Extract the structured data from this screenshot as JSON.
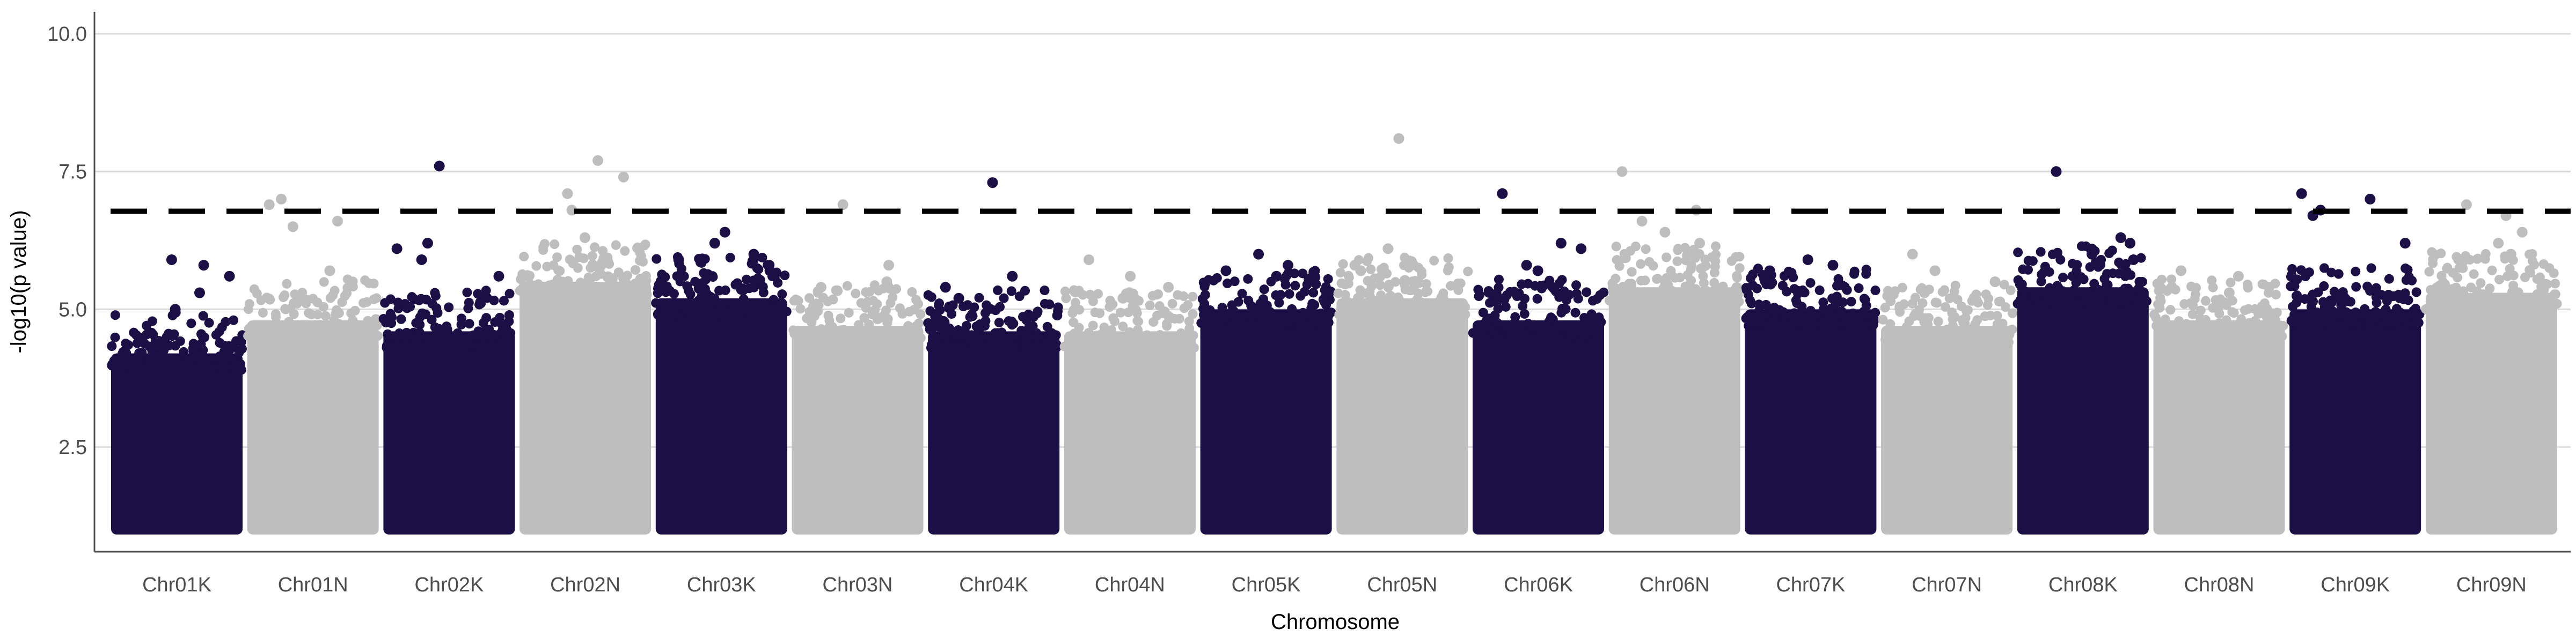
{
  "chart_data": {
    "type": "scatter",
    "subtype": "manhattan",
    "title": "",
    "xlabel": "Chromosome",
    "ylabel": "-log10(p value)",
    "ylim": [
      0.6,
      10.4
    ],
    "yticks": [
      2.5,
      5.0,
      7.5,
      10.0
    ],
    "ytick_labels": [
      "2.5",
      "5.0",
      "7.5",
      "10.0"
    ],
    "grid": "horizontal major",
    "legend": "none",
    "significance_threshold": 6.78,
    "threshold_style": "dashed",
    "point_floor": 1.0,
    "colors": {
      "odd": "#1b0f45",
      "even": "#bebebe",
      "threshold": "#000000",
      "grid": "#d9d9d9"
    },
    "chromosomes": [
      {
        "name": "Chr01K",
        "color": "#1b0f45",
        "dense_top": 4.2,
        "top_hits": [
          5.0,
          5.3,
          5.6,
          5.9,
          5.8
        ]
      },
      {
        "name": "Chr01N",
        "color": "#bebebe",
        "dense_top": 4.8,
        "top_hits": [
          6.5,
          6.6,
          6.9,
          7.0,
          5.7
        ]
      },
      {
        "name": "Chr02K",
        "color": "#1b0f45",
        "dense_top": 4.6,
        "top_hits": [
          6.2,
          7.6,
          6.1,
          5.9,
          5.6
        ]
      },
      {
        "name": "Chr02N",
        "color": "#bebebe",
        "dense_top": 5.5,
        "top_hits": [
          6.8,
          7.7,
          7.4,
          7.1,
          6.3
        ]
      },
      {
        "name": "Chr03K",
        "color": "#1b0f45",
        "dense_top": 5.2,
        "top_hits": [
          6.2,
          6.4,
          6.0,
          5.9,
          5.7
        ]
      },
      {
        "name": "Chr03N",
        "color": "#bebebe",
        "dense_top": 4.7,
        "top_hits": [
          6.9,
          5.8,
          5.5,
          5.4
        ]
      },
      {
        "name": "Chr04K",
        "color": "#1b0f45",
        "dense_top": 4.6,
        "top_hits": [
          7.3,
          5.6,
          5.4,
          5.2
        ]
      },
      {
        "name": "Chr04N",
        "color": "#bebebe",
        "dense_top": 4.6,
        "top_hits": [
          5.9,
          5.6,
          5.4,
          5.2
        ]
      },
      {
        "name": "Chr05K",
        "color": "#1b0f45",
        "dense_top": 5.0,
        "top_hits": [
          6.0,
          5.8,
          5.7,
          5.6
        ]
      },
      {
        "name": "Chr05N",
        "color": "#bebebe",
        "dense_top": 5.2,
        "top_hits": [
          8.1,
          6.1,
          5.8,
          5.7
        ]
      },
      {
        "name": "Chr06K",
        "color": "#1b0f45",
        "dense_top": 4.8,
        "top_hits": [
          7.1,
          6.2,
          6.1,
          5.8,
          5.7
        ]
      },
      {
        "name": "Chr06N",
        "color": "#bebebe",
        "dense_top": 5.4,
        "top_hits": [
          7.5,
          6.8,
          6.6,
          6.4,
          6.2
        ]
      },
      {
        "name": "Chr07K",
        "color": "#1b0f45",
        "dense_top": 5.0,
        "top_hits": [
          5.9,
          5.8,
          5.7
        ]
      },
      {
        "name": "Chr07N",
        "color": "#bebebe",
        "dense_top": 4.7,
        "top_hits": [
          6.0,
          5.7,
          5.5,
          5.3
        ]
      },
      {
        "name": "Chr08K",
        "color": "#1b0f45",
        "dense_top": 5.4,
        "top_hits": [
          7.5,
          6.3,
          6.2,
          6.0,
          5.9
        ]
      },
      {
        "name": "Chr08N",
        "color": "#bebebe",
        "dense_top": 4.8,
        "top_hits": [
          5.7,
          5.6,
          5.4,
          5.3
        ]
      },
      {
        "name": "Chr09K",
        "color": "#1b0f45",
        "dense_top": 5.0,
        "top_hits": [
          7.1,
          7.0,
          6.8,
          6.7,
          6.2
        ]
      },
      {
        "name": "Chr09N",
        "color": "#bebebe",
        "dense_top": 5.3,
        "top_hits": [
          6.9,
          6.7,
          6.4,
          6.2,
          6.0
        ]
      }
    ]
  }
}
